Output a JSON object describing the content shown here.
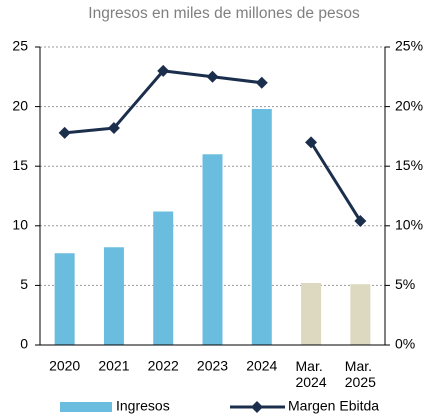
{
  "chart_data": {
    "type": "bar_line",
    "title": "Ingresos en miles de millones de pesos",
    "categories": [
      "2020",
      "2021",
      "2022",
      "2023",
      "2024",
      "Mar. 2024",
      "Mar. 2025"
    ],
    "series": [
      {
        "name": "Ingresos",
        "type": "bar",
        "color": "#6bbde0",
        "point_colors": [
          "#6bbde0",
          "#6bbde0",
          "#6bbde0",
          "#6bbde0",
          "#6bbde0",
          "#ddd8c0",
          "#ddd8c0"
        ],
        "values": [
          7.7,
          8.2,
          11.2,
          16.0,
          19.8,
          5.2,
          5.1
        ]
      },
      {
        "name": "Margen Ebitda",
        "type": "line",
        "axis": "y2",
        "color": "#1b2f4d",
        "values": [
          17.8,
          18.2,
          23.0,
          22.5,
          22.0,
          17.0,
          10.4
        ],
        "break_before": [
          5
        ]
      }
    ],
    "ylim": [
      0,
      25
    ],
    "yticks": [
      0,
      5,
      10,
      15,
      20,
      25
    ],
    "y2lim": [
      0,
      25
    ],
    "y2ticks": [
      {
        "value": 0,
        "label": "0%"
      },
      {
        "value": 5,
        "label": "5%"
      },
      {
        "value": 10,
        "label": "10%"
      },
      {
        "value": 15,
        "label": "15%"
      },
      {
        "value": 20,
        "label": "20%"
      },
      {
        "value": 25,
        "label": "25%"
      }
    ],
    "grid": true,
    "legend": "bottom"
  }
}
